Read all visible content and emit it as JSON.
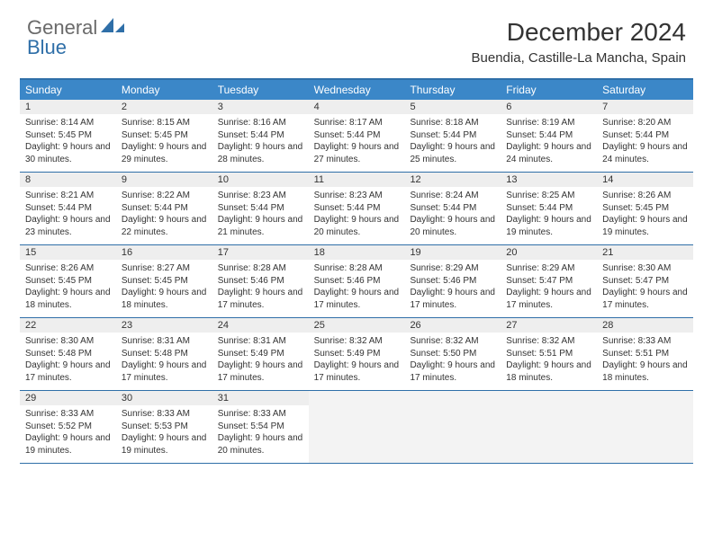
{
  "logo": {
    "text_gray": "General",
    "text_blue": "Blue"
  },
  "title": "December 2024",
  "location": "Buendia, Castille-La Mancha, Spain",
  "colors": {
    "header_bg": "#3b87c8",
    "border": "#2f6fa8",
    "daynum_bg": "#eeeeee",
    "empty_bg": "#f3f3f3",
    "text": "#333333",
    "logo_gray": "#6a6a6a",
    "logo_blue": "#2f6fa8"
  },
  "day_headers": [
    "Sunday",
    "Monday",
    "Tuesday",
    "Wednesday",
    "Thursday",
    "Friday",
    "Saturday"
  ],
  "weeks": [
    [
      {
        "n": "1",
        "sr": "8:14 AM",
        "ss": "5:45 PM",
        "dl": "9 hours and 30 minutes."
      },
      {
        "n": "2",
        "sr": "8:15 AM",
        "ss": "5:45 PM",
        "dl": "9 hours and 29 minutes."
      },
      {
        "n": "3",
        "sr": "8:16 AM",
        "ss": "5:44 PM",
        "dl": "9 hours and 28 minutes."
      },
      {
        "n": "4",
        "sr": "8:17 AM",
        "ss": "5:44 PM",
        "dl": "9 hours and 27 minutes."
      },
      {
        "n": "5",
        "sr": "8:18 AM",
        "ss": "5:44 PM",
        "dl": "9 hours and 25 minutes."
      },
      {
        "n": "6",
        "sr": "8:19 AM",
        "ss": "5:44 PM",
        "dl": "9 hours and 24 minutes."
      },
      {
        "n": "7",
        "sr": "8:20 AM",
        "ss": "5:44 PM",
        "dl": "9 hours and 24 minutes."
      }
    ],
    [
      {
        "n": "8",
        "sr": "8:21 AM",
        "ss": "5:44 PM",
        "dl": "9 hours and 23 minutes."
      },
      {
        "n": "9",
        "sr": "8:22 AM",
        "ss": "5:44 PM",
        "dl": "9 hours and 22 minutes."
      },
      {
        "n": "10",
        "sr": "8:23 AM",
        "ss": "5:44 PM",
        "dl": "9 hours and 21 minutes."
      },
      {
        "n": "11",
        "sr": "8:23 AM",
        "ss": "5:44 PM",
        "dl": "9 hours and 20 minutes."
      },
      {
        "n": "12",
        "sr": "8:24 AM",
        "ss": "5:44 PM",
        "dl": "9 hours and 20 minutes."
      },
      {
        "n": "13",
        "sr": "8:25 AM",
        "ss": "5:44 PM",
        "dl": "9 hours and 19 minutes."
      },
      {
        "n": "14",
        "sr": "8:26 AM",
        "ss": "5:45 PM",
        "dl": "9 hours and 19 minutes."
      }
    ],
    [
      {
        "n": "15",
        "sr": "8:26 AM",
        "ss": "5:45 PM",
        "dl": "9 hours and 18 minutes."
      },
      {
        "n": "16",
        "sr": "8:27 AM",
        "ss": "5:45 PM",
        "dl": "9 hours and 18 minutes."
      },
      {
        "n": "17",
        "sr": "8:28 AM",
        "ss": "5:46 PM",
        "dl": "9 hours and 17 minutes."
      },
      {
        "n": "18",
        "sr": "8:28 AM",
        "ss": "5:46 PM",
        "dl": "9 hours and 17 minutes."
      },
      {
        "n": "19",
        "sr": "8:29 AM",
        "ss": "5:46 PM",
        "dl": "9 hours and 17 minutes."
      },
      {
        "n": "20",
        "sr": "8:29 AM",
        "ss": "5:47 PM",
        "dl": "9 hours and 17 minutes."
      },
      {
        "n": "21",
        "sr": "8:30 AM",
        "ss": "5:47 PM",
        "dl": "9 hours and 17 minutes."
      }
    ],
    [
      {
        "n": "22",
        "sr": "8:30 AM",
        "ss": "5:48 PM",
        "dl": "9 hours and 17 minutes."
      },
      {
        "n": "23",
        "sr": "8:31 AM",
        "ss": "5:48 PM",
        "dl": "9 hours and 17 minutes."
      },
      {
        "n": "24",
        "sr": "8:31 AM",
        "ss": "5:49 PM",
        "dl": "9 hours and 17 minutes."
      },
      {
        "n": "25",
        "sr": "8:32 AM",
        "ss": "5:49 PM",
        "dl": "9 hours and 17 minutes."
      },
      {
        "n": "26",
        "sr": "8:32 AM",
        "ss": "5:50 PM",
        "dl": "9 hours and 17 minutes."
      },
      {
        "n": "27",
        "sr": "8:32 AM",
        "ss": "5:51 PM",
        "dl": "9 hours and 18 minutes."
      },
      {
        "n": "28",
        "sr": "8:33 AM",
        "ss": "5:51 PM",
        "dl": "9 hours and 18 minutes."
      }
    ],
    [
      {
        "n": "29",
        "sr": "8:33 AM",
        "ss": "5:52 PM",
        "dl": "9 hours and 19 minutes."
      },
      {
        "n": "30",
        "sr": "8:33 AM",
        "ss": "5:53 PM",
        "dl": "9 hours and 19 minutes."
      },
      {
        "n": "31",
        "sr": "8:33 AM",
        "ss": "5:54 PM",
        "dl": "9 hours and 20 minutes."
      },
      null,
      null,
      null,
      null
    ]
  ],
  "labels": {
    "sunrise": "Sunrise:",
    "sunset": "Sunset:",
    "daylight": "Daylight:"
  }
}
